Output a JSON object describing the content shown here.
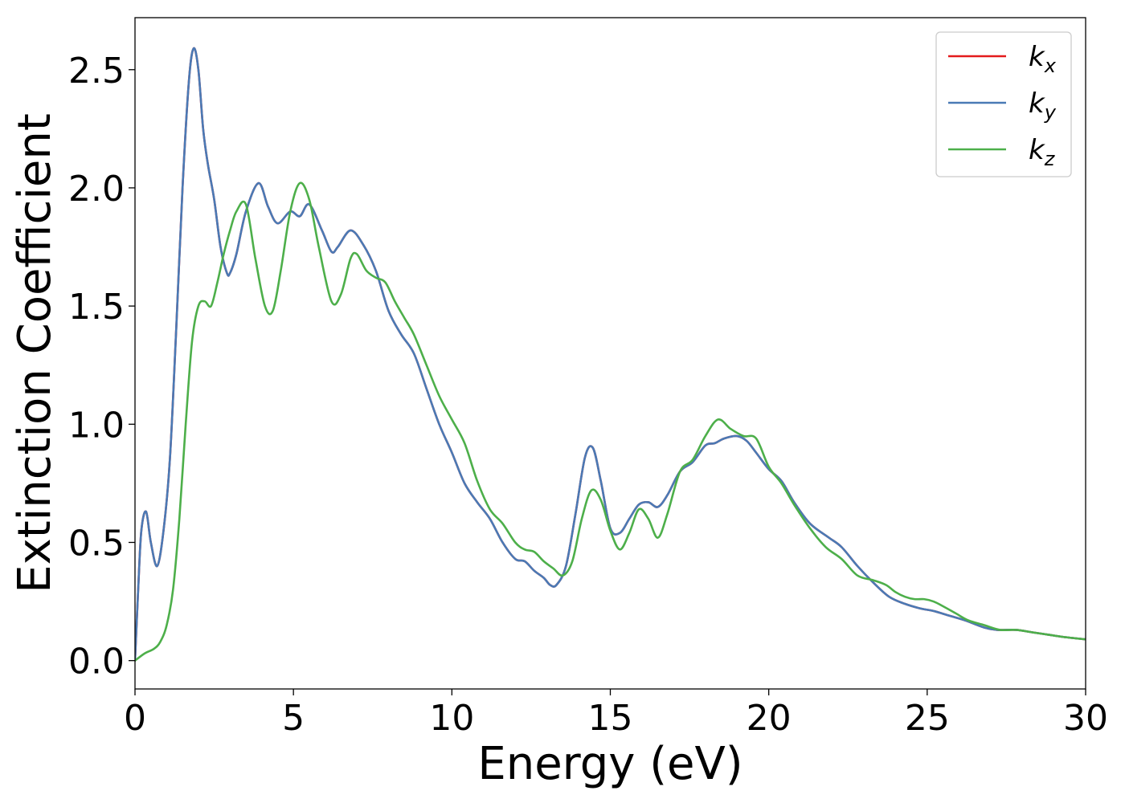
{
  "chart_data": {
    "type": "line",
    "title": "",
    "xlabel": "Energy (eV)",
    "ylabel": "Extinction Coefficient",
    "xlim": [
      0,
      30
    ],
    "ylim": [
      -0.12,
      2.72
    ],
    "x_ticks": [
      0,
      5,
      10,
      15,
      20,
      25,
      30
    ],
    "x_tick_labels": [
      "0",
      "5",
      "10",
      "15",
      "20",
      "25",
      "30"
    ],
    "y_ticks": [
      0.0,
      0.5,
      1.0,
      1.5,
      2.0,
      2.5
    ],
    "y_tick_labels": [
      "0.0",
      "0.5",
      "1.0",
      "1.5",
      "2.0",
      "2.5"
    ],
    "grid": false,
    "legend_position": "top-right",
    "series": [
      {
        "name": "k_x",
        "legend_main": "k",
        "legend_sub": "x",
        "color": "#e41a1c",
        "x": [
          0,
          0.1,
          0.2,
          0.35,
          0.5,
          0.7,
          0.9,
          1.1,
          1.3,
          1.5,
          1.7,
          1.85,
          2.0,
          2.15,
          2.3,
          2.5,
          2.7,
          2.9,
          3.0,
          3.2,
          3.5,
          3.9,
          4.2,
          4.5,
          4.9,
          5.2,
          5.5,
          5.9,
          6.2,
          6.4,
          6.8,
          7.2,
          7.6,
          8.0,
          8.4,
          8.8,
          9.2,
          9.6,
          10.0,
          10.4,
          10.8,
          11.2,
          11.6,
          12.0,
          12.3,
          12.6,
          12.9,
          13.1,
          13.3,
          13.6,
          13.9,
          14.2,
          14.45,
          14.7,
          15.0,
          15.3,
          15.6,
          15.9,
          16.2,
          16.5,
          16.8,
          17.2,
          17.6,
          18.0,
          18.3,
          18.6,
          19.0,
          19.3,
          19.6,
          20.0,
          20.4,
          20.8,
          21.3,
          21.9,
          22.3,
          22.8,
          23.3,
          23.8,
          24.3,
          24.8,
          25.2,
          25.7,
          26.2,
          26.8,
          27.2,
          27.8,
          28.3,
          28.8,
          29.3,
          30.0
        ],
        "y": [
          0.0,
          0.3,
          0.55,
          0.63,
          0.5,
          0.4,
          0.55,
          0.85,
          1.4,
          2.0,
          2.45,
          2.59,
          2.5,
          2.25,
          2.1,
          1.95,
          1.75,
          1.64,
          1.64,
          1.72,
          1.9,
          2.02,
          1.92,
          1.85,
          1.9,
          1.88,
          1.93,
          1.82,
          1.73,
          1.75,
          1.82,
          1.76,
          1.65,
          1.48,
          1.38,
          1.3,
          1.15,
          1.0,
          0.88,
          0.75,
          0.67,
          0.6,
          0.5,
          0.43,
          0.42,
          0.38,
          0.35,
          0.32,
          0.32,
          0.4,
          0.62,
          0.86,
          0.9,
          0.76,
          0.56,
          0.54,
          0.6,
          0.66,
          0.67,
          0.65,
          0.7,
          0.8,
          0.84,
          0.91,
          0.92,
          0.94,
          0.95,
          0.93,
          0.88,
          0.81,
          0.76,
          0.67,
          0.58,
          0.52,
          0.48,
          0.4,
          0.33,
          0.27,
          0.24,
          0.22,
          0.21,
          0.19,
          0.17,
          0.14,
          0.13,
          0.13,
          0.12,
          0.11,
          0.1,
          0.09
        ]
      },
      {
        "name": "k_y",
        "legend_main": "k",
        "legend_sub": "y",
        "color": "#4a7ab5",
        "x": [
          0,
          0.1,
          0.2,
          0.35,
          0.5,
          0.7,
          0.9,
          1.1,
          1.3,
          1.5,
          1.7,
          1.85,
          2.0,
          2.15,
          2.3,
          2.5,
          2.7,
          2.9,
          3.0,
          3.2,
          3.5,
          3.9,
          4.2,
          4.5,
          4.9,
          5.2,
          5.5,
          5.9,
          6.2,
          6.4,
          6.8,
          7.2,
          7.6,
          8.0,
          8.4,
          8.8,
          9.2,
          9.6,
          10.0,
          10.4,
          10.8,
          11.2,
          11.6,
          12.0,
          12.3,
          12.6,
          12.9,
          13.1,
          13.3,
          13.6,
          13.9,
          14.2,
          14.45,
          14.7,
          15.0,
          15.3,
          15.6,
          15.9,
          16.2,
          16.5,
          16.8,
          17.2,
          17.6,
          18.0,
          18.3,
          18.6,
          19.0,
          19.3,
          19.6,
          20.0,
          20.4,
          20.8,
          21.3,
          21.9,
          22.3,
          22.8,
          23.3,
          23.8,
          24.3,
          24.8,
          25.2,
          25.7,
          26.2,
          26.8,
          27.2,
          27.8,
          28.3,
          28.8,
          29.3,
          30.0
        ],
        "y": [
          0.0,
          0.3,
          0.55,
          0.63,
          0.5,
          0.4,
          0.55,
          0.85,
          1.4,
          2.0,
          2.45,
          2.59,
          2.5,
          2.25,
          2.1,
          1.95,
          1.75,
          1.64,
          1.64,
          1.72,
          1.9,
          2.02,
          1.92,
          1.85,
          1.9,
          1.88,
          1.93,
          1.82,
          1.73,
          1.75,
          1.82,
          1.76,
          1.65,
          1.48,
          1.38,
          1.3,
          1.15,
          1.0,
          0.88,
          0.75,
          0.67,
          0.6,
          0.5,
          0.43,
          0.42,
          0.38,
          0.35,
          0.32,
          0.32,
          0.4,
          0.62,
          0.86,
          0.9,
          0.76,
          0.56,
          0.54,
          0.6,
          0.66,
          0.67,
          0.65,
          0.7,
          0.8,
          0.84,
          0.91,
          0.92,
          0.94,
          0.95,
          0.93,
          0.88,
          0.81,
          0.76,
          0.67,
          0.58,
          0.52,
          0.48,
          0.4,
          0.33,
          0.27,
          0.24,
          0.22,
          0.21,
          0.19,
          0.17,
          0.14,
          0.13,
          0.13,
          0.12,
          0.11,
          0.1,
          0.09
        ]
      },
      {
        "name": "k_z",
        "legend_main": "k",
        "legend_sub": "z",
        "color": "#4daf4a",
        "x": [
          0,
          0.3,
          0.6,
          0.8,
          1.0,
          1.2,
          1.4,
          1.6,
          1.8,
          2.0,
          2.2,
          2.4,
          2.6,
          2.8,
          3.0,
          3.2,
          3.5,
          3.8,
          4.1,
          4.35,
          4.6,
          4.9,
          5.2,
          5.5,
          5.8,
          6.2,
          6.5,
          6.8,
          7.0,
          7.3,
          7.6,
          7.9,
          8.2,
          8.5,
          8.8,
          9.2,
          9.6,
          10.0,
          10.4,
          10.8,
          11.2,
          11.6,
          12.0,
          12.3,
          12.6,
          12.9,
          13.2,
          13.5,
          13.8,
          14.1,
          14.4,
          14.7,
          15.0,
          15.3,
          15.6,
          15.9,
          16.2,
          16.5,
          16.8,
          17.2,
          17.6,
          18.0,
          18.4,
          18.8,
          19.2,
          19.6,
          20.0,
          20.4,
          20.8,
          21.3,
          21.8,
          22.3,
          22.8,
          23.3,
          23.7,
          24.0,
          24.3,
          24.6,
          24.9,
          25.2,
          25.5,
          25.9,
          26.3,
          26.8,
          27.3,
          27.8,
          28.3,
          28.8,
          29.3,
          30.0
        ],
        "y": [
          0.0,
          0.03,
          0.05,
          0.08,
          0.15,
          0.3,
          0.6,
          1.0,
          1.35,
          1.5,
          1.52,
          1.5,
          1.6,
          1.72,
          1.82,
          1.9,
          1.93,
          1.7,
          1.5,
          1.48,
          1.65,
          1.9,
          2.02,
          1.95,
          1.75,
          1.52,
          1.55,
          1.7,
          1.72,
          1.65,
          1.62,
          1.6,
          1.52,
          1.45,
          1.38,
          1.25,
          1.12,
          1.02,
          0.92,
          0.76,
          0.64,
          0.58,
          0.5,
          0.47,
          0.46,
          0.42,
          0.39,
          0.36,
          0.42,
          0.6,
          0.72,
          0.68,
          0.55,
          0.47,
          0.54,
          0.64,
          0.6,
          0.52,
          0.62,
          0.8,
          0.85,
          0.95,
          1.02,
          0.98,
          0.95,
          0.94,
          0.82,
          0.75,
          0.66,
          0.56,
          0.48,
          0.43,
          0.36,
          0.34,
          0.32,
          0.29,
          0.27,
          0.26,
          0.26,
          0.25,
          0.23,
          0.2,
          0.17,
          0.15,
          0.13,
          0.13,
          0.12,
          0.11,
          0.1,
          0.09
        ]
      }
    ]
  }
}
